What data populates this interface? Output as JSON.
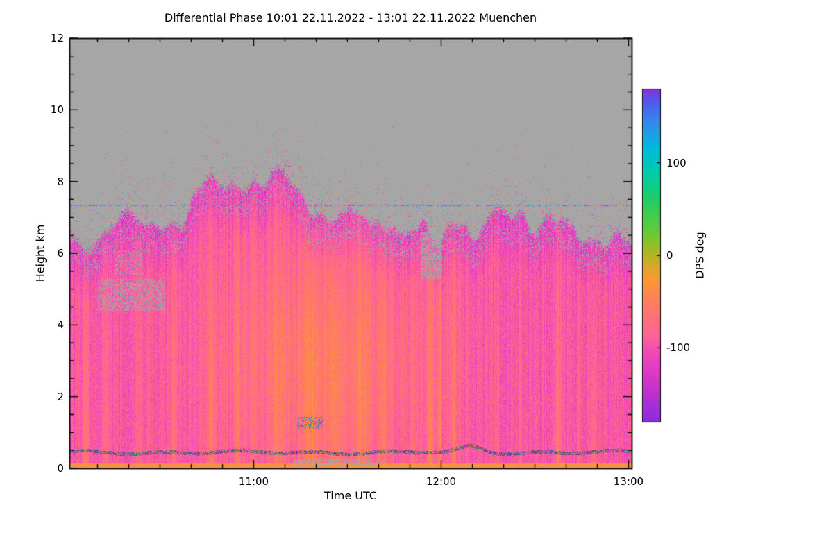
{
  "title": "Differential Phase   10:01 22.11.2022 - 13:01 22.11.2022 Muenchen",
  "chart_data": {
    "type": "heatmap",
    "title": "Differential Phase   10:01 22.11.2022 - 13:01 22.11.2022 Muenchen",
    "xlabel": "Time UTC",
    "ylabel": "Height km",
    "x_start": "10:01",
    "x_end": "13:01",
    "x_span_minutes": 180,
    "x_ticks": [
      {
        "label": "11:00",
        "minutes": 59
      },
      {
        "label": "12:00",
        "minutes": 119
      },
      {
        "label": "13:00",
        "minutes": 179
      }
    ],
    "x_minor_step_minutes": 10,
    "ylim": [
      0,
      12
    ],
    "y_major_ticks": [
      0,
      2,
      4,
      6,
      8,
      10,
      12
    ],
    "y_minor_step": 0.5,
    "grid": false,
    "legend_position": "right-colorbar",
    "colorbar": {
      "label": "DPS deg",
      "range": [
        -180,
        180
      ],
      "ticks": [
        100,
        0,
        -100
      ],
      "stops": [
        [
          -180,
          "#8a2be2"
        ],
        [
          -140,
          "#cc33cc"
        ],
        [
          -110,
          "#ee44bb"
        ],
        [
          -90,
          "#ff5f9e"
        ],
        [
          -70,
          "#ff6f7f"
        ],
        [
          -50,
          "#ff7f5f"
        ],
        [
          -25,
          "#ff9933"
        ],
        [
          0,
          "#b5b523"
        ],
        [
          25,
          "#66cc33"
        ],
        [
          60,
          "#22cc66"
        ],
        [
          90,
          "#00ccaa"
        ],
        [
          115,
          "#00bbdd"
        ],
        [
          145,
          "#3388ee"
        ],
        [
          168,
          "#5555ee"
        ],
        [
          180,
          "#8833dd"
        ]
      ]
    },
    "no_data_color": "#a6a6a6",
    "background": "#ffffff",
    "field_summary": {
      "description": "Noisy radar differential-phase time-height field. Bulk values near -100 deg (pink/magenta speckle), orange vertical streaks near -50 deg, magenta/purple mottling at the echo top, grey = no data above echo top. Thin multicolour artifact line at 7.35 km, dark speckled clutter/melting line near 0.45 km, bright orange surface band at 0 km.",
      "seed": 42,
      "bulk_value_deg": -95,
      "noise_amplitude_deg": 20,
      "column_noise_deg": 14,
      "echo_top_km_profile": [
        [
          0.0,
          6.3
        ],
        [
          0.05,
          6.6
        ],
        [
          0.1,
          6.9
        ],
        [
          0.15,
          6.8
        ],
        [
          0.2,
          7.1
        ],
        [
          0.24,
          7.6
        ],
        [
          0.27,
          7.9
        ],
        [
          0.3,
          8.15
        ],
        [
          0.34,
          8.0
        ],
        [
          0.38,
          7.7
        ],
        [
          0.42,
          7.3
        ],
        [
          0.46,
          7.05
        ],
        [
          0.5,
          7.2
        ],
        [
          0.54,
          6.9
        ],
        [
          0.58,
          6.7
        ],
        [
          0.61,
          6.45
        ],
        [
          0.64,
          6.1
        ],
        [
          0.67,
          6.5
        ],
        [
          0.72,
          6.7
        ],
        [
          0.78,
          6.9
        ],
        [
          0.83,
          7.0
        ],
        [
          0.88,
          6.7
        ],
        [
          0.93,
          6.45
        ],
        [
          1.0,
          6.25
        ]
      ],
      "edge_band_km": 1.4,
      "edge_value_shift_deg": -28,
      "orange_streaks": [
        {
          "c": 0.028,
          "a": 40,
          "w": 0.006
        },
        {
          "c": 0.065,
          "a": 26,
          "w": 0.005
        },
        {
          "c": 0.125,
          "a": 20,
          "w": 0.005
        },
        {
          "c": 0.185,
          "a": 24,
          "w": 0.005
        },
        {
          "c": 0.252,
          "a": 38,
          "w": 0.007
        },
        {
          "c": 0.3,
          "a": 26,
          "w": 0.005
        },
        {
          "c": 0.37,
          "a": 22,
          "w": 0.01
        },
        {
          "c": 0.43,
          "a": 28,
          "w": 0.014
        },
        {
          "c": 0.475,
          "a": 24,
          "w": 0.012
        },
        {
          "c": 0.52,
          "a": 26,
          "w": 0.01
        },
        {
          "c": 0.558,
          "a": 22,
          "w": 0.007
        },
        {
          "c": 0.61,
          "a": 18,
          "w": 0.005
        },
        {
          "c": 0.641,
          "a": 48,
          "w": 0.005
        },
        {
          "c": 0.658,
          "a": 40,
          "w": 0.004
        },
        {
          "c": 0.683,
          "a": 34,
          "w": 0.005
        },
        {
          "c": 0.76,
          "a": 18,
          "w": 0.004
        },
        {
          "c": 0.8,
          "a": 20,
          "w": 0.004
        },
        {
          "c": 0.868,
          "a": 36,
          "w": 0.006
        },
        {
          "c": 0.905,
          "a": 22,
          "w": 0.004
        },
        {
          "c": 0.932,
          "a": 30,
          "w": 0.005
        }
      ],
      "broad_warm_region": {
        "t_center": 0.45,
        "t_sigma": 0.14,
        "h_center_km": 3.0,
        "h_sigma_km": 2.4,
        "amplitude_deg": 34
      },
      "surface_band": {
        "top_km": 0.14,
        "value_deg": -32,
        "noise_deg": 22
      },
      "clutter_line": {
        "height_km": 0.45,
        "thickness_km": 0.1,
        "density": 0.55,
        "bump_t": 0.715,
        "bump_km": 0.15
      },
      "artifact_line": {
        "height_km": 7.35,
        "density": 0.45
      },
      "speckle_above_top": {
        "scale_km": 0.6,
        "max_height_km": 9.6,
        "base_density": 0.0015
      },
      "grey_patches": [
        {
          "t0": 0.05,
          "t1": 0.17,
          "h0": 4.4,
          "h1": 5.3,
          "density": 0.4,
          "kind": "grey"
        },
        {
          "t0": 0.08,
          "t1": 0.13,
          "h0": 5.4,
          "h1": 6.1,
          "density": 0.3,
          "kind": "grey"
        },
        {
          "t0": 0.625,
          "t1": 0.662,
          "h0": 5.3,
          "h1": 6.6,
          "density": 0.55,
          "kind": "grey"
        },
        {
          "t0": 0.4,
          "t1": 0.55,
          "h0": 0.06,
          "h1": 0.26,
          "density": 0.45,
          "kind": "grey"
        },
        {
          "t0": 0.405,
          "t1": 0.45,
          "h0": 1.1,
          "h1": 1.45,
          "density": 0.22,
          "kind": "blue"
        }
      ]
    }
  }
}
